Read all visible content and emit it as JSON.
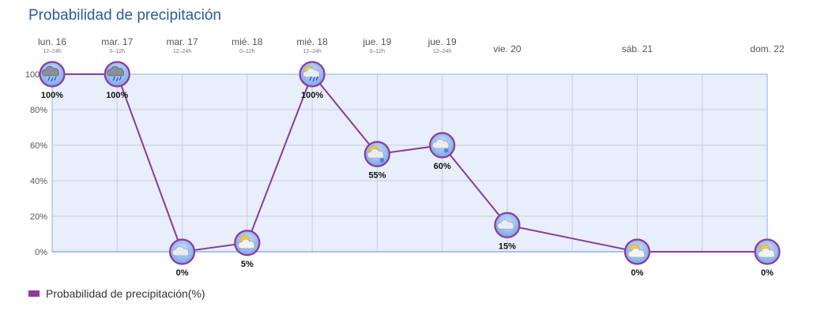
{
  "header": {
    "title": "Probabilidad de precipitación"
  },
  "legend": {
    "label": "Probabilidad de precipitación(%)"
  },
  "colors": {
    "series": "#8b3a9e",
    "plot_bg": "#e8eefa",
    "grid": "#c6cddd",
    "frame": "#8fb0e2"
  },
  "chart_data": {
    "type": "line",
    "title": "Probabilidad de precipitación",
    "ylabel": "",
    "xlabel": "",
    "ylim": [
      0,
      100
    ],
    "yticks": [
      "0%",
      "20%",
      "40%",
      "60%",
      "80%",
      "100%"
    ],
    "ytick_values": [
      0,
      20,
      40,
      60,
      80,
      100
    ],
    "grid": true,
    "legend_position": "bottom-left",
    "categories": [
      {
        "day": "lun. 16",
        "period": "12–24h"
      },
      {
        "day": "mar. 17",
        "period": "0–12h"
      },
      {
        "day": "mar. 17",
        "period": "12–24h"
      },
      {
        "day": "mié. 18",
        "period": "0–12h"
      },
      {
        "day": "mié. 18",
        "period": "12–24h"
      },
      {
        "day": "jue. 19",
        "period": "0–12h"
      },
      {
        "day": "jue. 19",
        "period": "12–24h"
      },
      {
        "day": "vie. 20",
        "period": ""
      },
      {
        "day": "",
        "period": ""
      },
      {
        "day": "sáb. 21",
        "period": ""
      },
      {
        "day": "",
        "period": ""
      },
      {
        "day": "dom. 22",
        "period": ""
      }
    ],
    "series": [
      {
        "name": "Probabilidad de precipitación(%)",
        "points": [
          {
            "index": 0,
            "value": 100,
            "label": "100%",
            "icon": "rain-cloud-icon"
          },
          {
            "index": 1,
            "value": 100,
            "label": "100%",
            "icon": "rain-cloud-icon"
          },
          {
            "index": 2,
            "value": 0,
            "label": "0%",
            "icon": "cloud-icon"
          },
          {
            "index": 3,
            "value": 5,
            "label": "5%",
            "icon": "sun-cloud-icon"
          },
          {
            "index": 4,
            "value": 100,
            "label": "100%",
            "icon": "sun-rain-cloud-icon"
          },
          {
            "index": 5,
            "value": 55,
            "label": "55%",
            "icon": "sun-snow-cloud-icon"
          },
          {
            "index": 6,
            "value": 60,
            "label": "60%",
            "icon": "snow-cloud-icon"
          },
          {
            "index": 7,
            "value": 15,
            "label": "15%",
            "icon": "cloud-icon"
          },
          {
            "index": 9,
            "value": 0,
            "label": "0%",
            "icon": "sun-cloud-icon"
          },
          {
            "index": 11,
            "value": 0,
            "label": "0%",
            "icon": "sun-cloud-icon"
          }
        ]
      }
    ]
  }
}
